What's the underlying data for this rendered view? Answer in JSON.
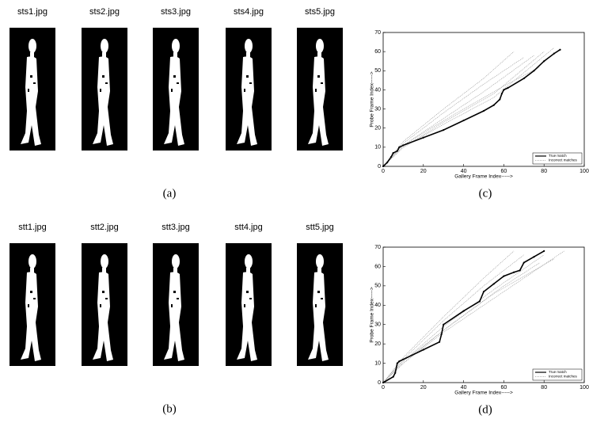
{
  "figure": {
    "rows": [
      {
        "labels": [
          "sts1.jpg",
          "sts2.jpg",
          "sts3.jpg",
          "sts4.jpg",
          "sts5.jpg"
        ],
        "caption": "(a)"
      },
      {
        "labels": [
          "stt1.jpg",
          "stt2.jpg",
          "stt3.jpg",
          "stt4.jpg",
          "stt5.jpg"
        ],
        "caption": "(b)"
      }
    ]
  },
  "chart_data": [
    {
      "type": "line",
      "caption": "(c)",
      "x_label": "Gallery Frame Index----->",
      "y_label": "Probe Frame Index----->",
      "xlim": [
        0,
        100
      ],
      "ylim": [
        0,
        70
      ],
      "xticks": [
        0,
        20,
        40,
        60,
        80,
        100
      ],
      "yticks": [
        0,
        10,
        20,
        30,
        40,
        50,
        60,
        70
      ],
      "legend": "lower right",
      "series": [
        {
          "name": "True match",
          "color": "#000000",
          "style": "solid",
          "x": [
            0,
            2,
            4,
            5,
            7,
            8,
            10,
            20,
            30,
            40,
            50,
            55,
            58,
            59,
            60,
            62,
            70,
            75,
            80,
            85,
            88
          ],
          "values": [
            0,
            2,
            5,
            7,
            8,
            10,
            11,
            15,
            19,
            24,
            29,
            32,
            35,
            38,
            40,
            41,
            46,
            50,
            55,
            59,
            61
          ]
        },
        {
          "name": "Incorrect matches",
          "color": "#999999",
          "style": "dotted",
          "lines": [
            {
              "x": [
                0,
                10,
                30,
                50,
                70
              ],
              "values": [
                0,
                12,
                28,
                43,
                57
              ]
            },
            {
              "x": [
                0,
                10,
                30,
                50,
                75
              ],
              "values": [
                0,
                11,
                25,
                39,
                58
              ]
            },
            {
              "x": [
                0,
                10,
                30,
                55,
                80
              ],
              "values": [
                0,
                10,
                23,
                38,
                60
              ]
            },
            {
              "x": [
                0,
                10,
                30,
                55,
                85
              ],
              "values": [
                0,
                10,
                22,
                36,
                62
              ]
            },
            {
              "x": [
                0,
                10,
                30,
                50,
                65
              ],
              "values": [
                0,
                13,
                30,
                46,
                60
              ]
            },
            {
              "x": [
                0,
                10,
                35,
                60,
                78
              ],
              "values": [
                0,
                11,
                27,
                42,
                52
              ]
            }
          ]
        }
      ]
    },
    {
      "type": "line",
      "caption": "(d)",
      "x_label": "Gallery Frame Index----->",
      "y_label": "Probe Frame Index----->",
      "xlim": [
        0,
        100
      ],
      "ylim": [
        0,
        70
      ],
      "xticks": [
        0,
        20,
        40,
        60,
        80,
        100
      ],
      "yticks": [
        0,
        10,
        20,
        30,
        40,
        50,
        60,
        70
      ],
      "legend": "lower right",
      "series": [
        {
          "name": "True match",
          "color": "#000000",
          "style": "solid",
          "x": [
            0,
            5,
            6,
            7,
            8,
            10,
            20,
            28,
            29,
            30,
            40,
            48,
            50,
            55,
            60,
            65,
            68,
            70,
            75,
            80
          ],
          "values": [
            0,
            3,
            5,
            10,
            11,
            12,
            17,
            21,
            25,
            30,
            37,
            42,
            47,
            51,
            55,
            57,
            58,
            62,
            65,
            68
          ]
        },
        {
          "name": "Incorrect matches",
          "color": "#999999",
          "style": "dotted",
          "lines": [
            {
              "x": [
                0,
                10,
                30,
                50,
                70
              ],
              "values": [
                0,
                12,
                32,
                50,
                66
              ]
            },
            {
              "x": [
                0,
                10,
                30,
                55,
                80
              ],
              "values": [
                0,
                11,
                29,
                48,
                66
              ]
            },
            {
              "x": [
                0,
                10,
                30,
                55,
                85
              ],
              "values": [
                0,
                10,
                27,
                46,
                64
              ]
            },
            {
              "x": [
                0,
                10,
                30,
                60,
                90
              ],
              "values": [
                0,
                10,
                26,
                47,
                68
              ]
            },
            {
              "x": [
                0,
                10,
                30,
                50,
                65
              ],
              "values": [
                0,
                13,
                34,
                54,
                68
              ]
            },
            {
              "x": [
                0,
                10,
                35,
                60,
                78
              ],
              "values": [
                0,
                11,
                31,
                50,
                62
              ]
            }
          ]
        }
      ]
    }
  ]
}
